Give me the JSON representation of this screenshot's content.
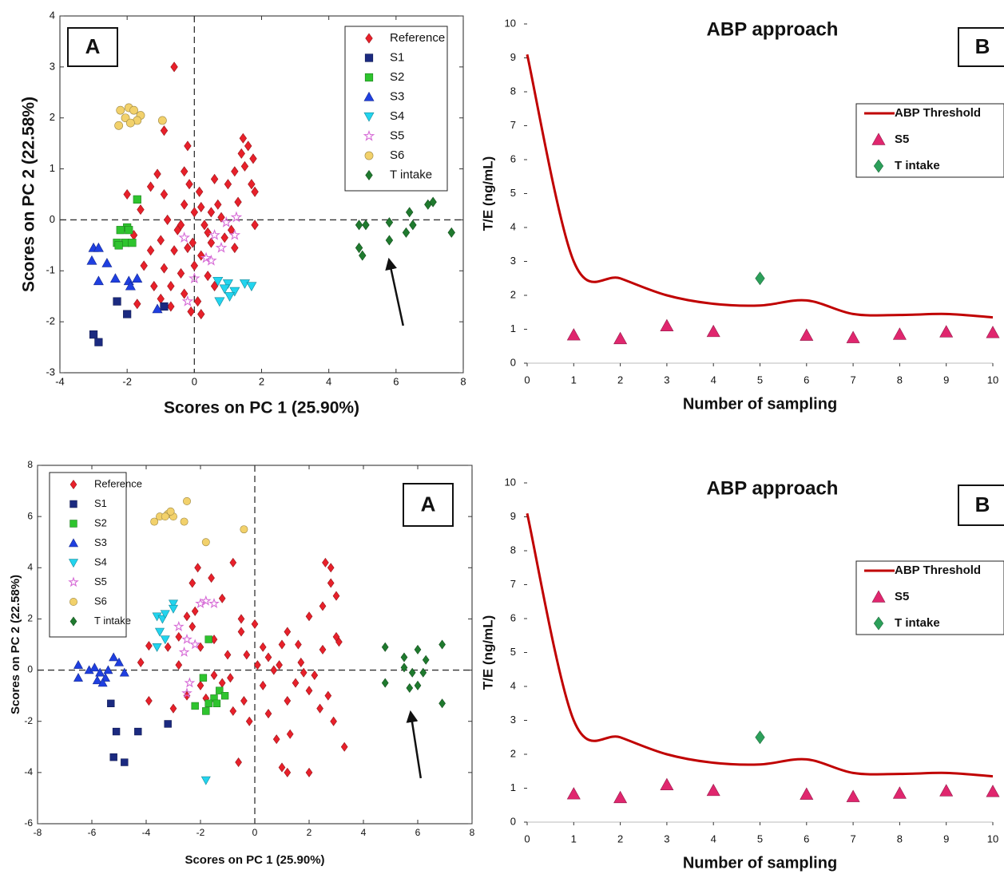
{
  "chart_data": [
    {
      "type": "scatter",
      "panel_label": "A",
      "xlabel": "Scores on PC 1 (25.90%)",
      "ylabel": "Scores on PC 2 (22.58%)",
      "xlim": [
        -4,
        8
      ],
      "ylim": [
        -3,
        4
      ],
      "xticks": [
        -4,
        -2,
        0,
        2,
        4,
        6,
        8
      ],
      "yticks": [
        -3,
        -2,
        -1,
        0,
        1,
        2,
        3,
        4
      ],
      "legend": "upper right",
      "series": [
        {
          "name": "Reference",
          "color": "#e8202a",
          "marker": "diamond",
          "x": [
            -0.6,
            -0.9,
            -0.2,
            1.45,
            1.6,
            1.75,
            1.4,
            1.5,
            1.7,
            1.8,
            1.2,
            1.0,
            0.6,
            -0.3,
            -0.15,
            -1.1,
            -1.3,
            -2,
            -1.6,
            -0.3,
            0.2,
            0.5,
            0.8,
            1.1,
            1.8,
            -0.8,
            -0.4,
            0,
            0.4,
            0.9,
            1.2,
            -1.0,
            -0.6,
            -0.2,
            0.2,
            0.5,
            -1.3,
            -1.5,
            -0.9,
            -0.4,
            0,
            0.4,
            -1.2,
            -0.7,
            -0.3,
            0.1,
            -1.7,
            -1.0,
            0.2,
            -0.1,
            0.6,
            -0.5,
            0.3,
            -1.8,
            -0.9,
            0.7,
            1.3,
            -0.05,
            0.15,
            -0.7
          ],
          "values": [
            3.0,
            1.75,
            1.45,
            1.6,
            1.45,
            1.2,
            1.3,
            1.05,
            0.7,
            0.55,
            0.95,
            0.7,
            0.8,
            0.95,
            0.7,
            0.9,
            0.65,
            0.5,
            0.2,
            0.3,
            0.25,
            0.15,
            0.05,
            -0.2,
            -0.1,
            0.0,
            -0.1,
            0.15,
            -0.25,
            -0.35,
            -0.55,
            -0.4,
            -0.6,
            -0.55,
            -0.7,
            -0.45,
            -0.6,
            -0.9,
            -0.95,
            -1.05,
            -0.9,
            -1.1,
            -1.3,
            -1.3,
            -1.45,
            -1.6,
            -1.65,
            -1.55,
            -1.85,
            -1.8,
            -1.3,
            -0.2,
            -0.1,
            -0.3,
            0.5,
            0.3,
            0.35,
            -0.45,
            0.55,
            -1.7
          ]
        },
        {
          "name": "S1",
          "color": "#1b2a80",
          "marker": "square",
          "x": [
            -3,
            -2.85,
            -2.3,
            -2.0,
            -0.9
          ],
          "values": [
            -2.25,
            -2.4,
            -1.6,
            -1.85,
            -1.7
          ]
        },
        {
          "name": "S2",
          "color": "#2ec42e",
          "marker": "square",
          "x": [
            -1.7,
            -2.0,
            -2.2,
            -1.95,
            -2.3,
            -2.05,
            -1.85,
            -2.25
          ],
          "values": [
            0.4,
            -0.15,
            -0.2,
            -0.2,
            -0.45,
            -0.45,
            -0.45,
            -0.5
          ]
        },
        {
          "name": "S3",
          "color": "#1f3fe0",
          "marker": "triangle",
          "x": [
            -3.0,
            -2.85,
            -3.05,
            -2.6,
            -2.85,
            -2.35,
            -1.95,
            -1.7,
            -1.9,
            -1.1
          ],
          "values": [
            -0.55,
            -0.55,
            -0.8,
            -0.85,
            -1.2,
            -1.15,
            -1.2,
            -1.15,
            -1.3,
            -1.75
          ]
        },
        {
          "name": "S4",
          "color": "#22d4ee",
          "marker": "triangle-down",
          "x": [
            0.7,
            1.0,
            1.5,
            0.9,
            1.2,
            1.7,
            0.75,
            1.05
          ],
          "values": [
            -1.2,
            -1.25,
            -1.25,
            -1.35,
            -1.4,
            -1.3,
            -1.6,
            -1.5
          ]
        },
        {
          "name": "S5",
          "color": "#d66ad6",
          "marker": "star",
          "x": [
            1.25,
            0.95,
            -0.3,
            0.6,
            1.2,
            0.8,
            0.35,
            0.5,
            -0.2,
            0.0
          ],
          "values": [
            0.05,
            -0.05,
            -0.35,
            -0.3,
            -0.3,
            -0.55,
            -0.75,
            -0.8,
            -1.6,
            -1.15
          ]
        },
        {
          "name": "S6",
          "color": "#f2d16b",
          "marker": "circle",
          "x": [
            -2.2,
            -1.95,
            -1.8,
            -2.05,
            -1.6,
            -1.7,
            -2.25,
            -1.9,
            -0.95
          ],
          "values": [
            2.15,
            2.2,
            2.15,
            2.0,
            2.05,
            1.95,
            1.85,
            1.9,
            1.95
          ]
        },
        {
          "name": "T intake",
          "color": "#1f7a2e",
          "marker": "diamond",
          "x": [
            4.9,
            5.1,
            5.8,
            6.4,
            6.5,
            6.95,
            7.1,
            7.65,
            4.9,
            5.0,
            5.8,
            6.3
          ],
          "values": [
            -0.1,
            -0.1,
            -0.05,
            0.15,
            -0.1,
            0.3,
            0.35,
            -0.25,
            -0.55,
            -0.7,
            -0.4,
            -0.25
          ]
        }
      ]
    },
    {
      "type": "line",
      "title": "ABP approach",
      "panel_label": "B",
      "xlabel": "Number of sampling",
      "ylabel": "T/E (ng/mL)",
      "xlim": [
        0,
        10
      ],
      "ylim": [
        0,
        10
      ],
      "xticks": [
        0,
        1,
        2,
        3,
        4,
        5,
        6,
        7,
        8,
        9,
        10
      ],
      "yticks": [
        0,
        1,
        2,
        3,
        4,
        5,
        6,
        7,
        8,
        9,
        10
      ],
      "legend": "right",
      "series": [
        {
          "name": "ABP Threshold",
          "color": "#c00000",
          "marker": "line",
          "x": [
            0,
            1,
            2,
            3,
            4,
            5,
            6,
            7,
            8,
            9,
            10
          ],
          "values": [
            9.1,
            3.0,
            2.5,
            2.0,
            1.75,
            1.7,
            1.85,
            1.45,
            1.42,
            1.45,
            1.35
          ]
        },
        {
          "name": "S5",
          "color": "#e0266e",
          "marker": "triangle",
          "x": [
            1,
            2,
            3,
            4,
            6,
            7,
            8,
            9,
            10
          ],
          "values": [
            0.83,
            0.72,
            1.1,
            0.93,
            0.82,
            0.75,
            0.85,
            0.92,
            0.9
          ]
        },
        {
          "name": "T intake",
          "color": "#2ca05a",
          "marker": "diamond",
          "x": [
            5
          ],
          "values": [
            2.5
          ]
        }
      ]
    },
    {
      "type": "scatter",
      "panel_label": "A",
      "xlabel": "Scores on PC 1 (25.90%)",
      "ylabel": "Scores on PC 2 (22.58%)",
      "xlim": [
        -8,
        8
      ],
      "ylim": [
        -6,
        8
      ],
      "xticks": [
        -8,
        -6,
        -4,
        -2,
        0,
        2,
        4,
        6,
        8
      ],
      "yticks": [
        -6,
        -4,
        -2,
        0,
        2,
        4,
        6,
        8
      ],
      "legend": "upper left",
      "series": [
        {
          "name": "Reference",
          "color": "#e8202a",
          "marker": "diamond",
          "x": [
            -3.9,
            -3.9,
            -4.2,
            -3.2,
            -2.8,
            -2.5,
            -2.2,
            -2.3,
            -2.1,
            -1.6,
            -0.8,
            -1.2,
            -0.5,
            -0.5,
            0,
            0.3,
            0.5,
            0.9,
            1.2,
            1.6,
            2.0,
            2.5,
            2.8,
            2.6,
            2.8,
            3.0,
            3.1,
            2.5,
            2.7,
            2.4,
            2.0,
            1.5,
            1.2,
            1.3,
            0.8,
            1.0,
            1.2,
            2.0,
            2.9,
            3.3,
            -0.2,
            -0.6,
            -0.4,
            -0.8,
            -1.2,
            -1.5,
            -2.0,
            -2.5,
            -2.8,
            -2.0,
            -1.0,
            -0.9,
            0.3,
            0.7,
            1.7,
            2.2,
            -1.5,
            -3.0,
            -1.8,
            0.5,
            1.8,
            0.1,
            -0.3,
            -2.3,
            1.0,
            3.0
          ],
          "values": [
            0.95,
            -1.2,
            0.3,
            0.9,
            1.3,
            2.1,
            2.3,
            3.4,
            4.0,
            3.6,
            4.2,
            2.8,
            2.0,
            1.5,
            1.8,
            0.9,
            0.5,
            0.2,
            1.5,
            1.0,
            2.1,
            2.5,
            3.4,
            4.2,
            4.0,
            1.3,
            1.1,
            0.8,
            -1.0,
            -1.5,
            -0.8,
            -0.5,
            -1.2,
            -2.5,
            -2.7,
            -3.8,
            -4.0,
            -4.0,
            -2.0,
            -3.0,
            -2.0,
            -3.6,
            -1.2,
            -1.6,
            -0.5,
            -0.2,
            -0.6,
            -1.0,
            0.2,
            0.9,
            0.6,
            -0.3,
            -0.6,
            0.0,
            0.3,
            -0.2,
            1.2,
            -1.5,
            -1.1,
            -1.7,
            -0.1,
            0.2,
            0.6,
            1.7,
            1.0,
            2.9
          ]
        },
        {
          "name": "S1",
          "color": "#1b2a80",
          "marker": "square",
          "x": [
            -5.3,
            -5.1,
            -4.3,
            -3.2,
            -5.2,
            -4.8
          ],
          "values": [
            -1.3,
            -2.4,
            -2.4,
            -2.1,
            -3.4,
            -3.6
          ]
        },
        {
          "name": "S2",
          "color": "#2ec42e",
          "marker": "square",
          "x": [
            -1.7,
            -1.9,
            -1.3,
            -1.1,
            -1.5,
            -1.4,
            -1.7,
            -2.2,
            -1.8
          ],
          "values": [
            1.2,
            -0.3,
            -0.8,
            -1.0,
            -1.1,
            -1.3,
            -1.3,
            -1.4,
            -1.6
          ]
        },
        {
          "name": "S3",
          "color": "#1f3fe0",
          "marker": "triangle",
          "x": [
            -6.5,
            -6.5,
            -6.1,
            -5.9,
            -5.7,
            -5.5,
            -5.8,
            -5.4,
            -5.2,
            -5.0,
            -4.8,
            -5.6
          ],
          "values": [
            0.2,
            -0.3,
            0.0,
            0.1,
            -0.1,
            -0.3,
            -0.4,
            0.0,
            0.5,
            0.3,
            -0.1,
            -0.5
          ]
        },
        {
          "name": "S4",
          "color": "#22d4ee",
          "marker": "triangle-down",
          "x": [
            -3.6,
            -3.4,
            -3.3,
            -3.0,
            -3.0,
            -3.5,
            -3.3,
            -3.6,
            -1.8
          ],
          "values": [
            2.1,
            2.0,
            2.2,
            2.6,
            2.4,
            1.5,
            1.2,
            0.9,
            -4.3
          ]
        },
        {
          "name": "S5",
          "color": "#d66ad6",
          "marker": "star",
          "x": [
            -2.8,
            -2.5,
            -2.2,
            -2.0,
            -1.8,
            -1.5,
            -2.6,
            -2.4,
            -2.5
          ],
          "values": [
            1.7,
            1.2,
            1.0,
            2.6,
            2.7,
            2.6,
            0.7,
            -0.5,
            -0.9
          ]
        },
        {
          "name": "S6",
          "color": "#f2d16b",
          "marker": "circle",
          "x": [
            -3.7,
            -3.5,
            -3.2,
            -3.0,
            -2.6,
            -2.5,
            -3.1,
            -1.8,
            -0.4,
            -3.3
          ],
          "values": [
            5.8,
            6.0,
            6.1,
            6.0,
            5.8,
            6.6,
            6.2,
            5.0,
            5.5,
            6.0
          ]
        },
        {
          "name": "T intake",
          "color": "#1f7a2e",
          "marker": "diamond",
          "x": [
            4.8,
            4.8,
            5.5,
            5.5,
            5.8,
            6.0,
            6.0,
            5.7,
            6.3,
            6.9,
            6.2,
            6.9
          ],
          "values": [
            0.9,
            -0.5,
            0.5,
            0.1,
            -0.1,
            0.8,
            -0.6,
            -0.7,
            0.4,
            1.0,
            -0.1,
            -1.3
          ]
        }
      ]
    },
    {
      "type": "line",
      "title": "ABP approach",
      "panel_label": "B",
      "xlabel": "Number of sampling",
      "ylabel": "T/E (ng/mL)",
      "xlim": [
        0,
        10
      ],
      "ylim": [
        0,
        10
      ],
      "xticks": [
        0,
        1,
        2,
        3,
        4,
        5,
        6,
        7,
        8,
        9,
        10
      ],
      "yticks": [
        0,
        1,
        2,
        3,
        4,
        5,
        6,
        7,
        8,
        9,
        10
      ],
      "legend": "right",
      "series": [
        {
          "name": "ABP Threshold",
          "color": "#c00000",
          "marker": "line",
          "x": [
            0,
            1,
            2,
            3,
            4,
            5,
            6,
            7,
            8,
            9,
            10
          ],
          "values": [
            9.1,
            3.0,
            2.5,
            2.0,
            1.75,
            1.7,
            1.85,
            1.45,
            1.42,
            1.45,
            1.35
          ]
        },
        {
          "name": "S5",
          "color": "#e0266e",
          "marker": "triangle",
          "x": [
            1,
            2,
            3,
            4,
            6,
            7,
            8,
            9,
            10
          ],
          "values": [
            0.83,
            0.72,
            1.1,
            0.93,
            0.82,
            0.75,
            0.85,
            0.92,
            0.9
          ]
        },
        {
          "name": "T intake",
          "color": "#2ca05a",
          "marker": "diamond",
          "x": [
            5
          ],
          "values": [
            2.5
          ]
        }
      ]
    }
  ]
}
